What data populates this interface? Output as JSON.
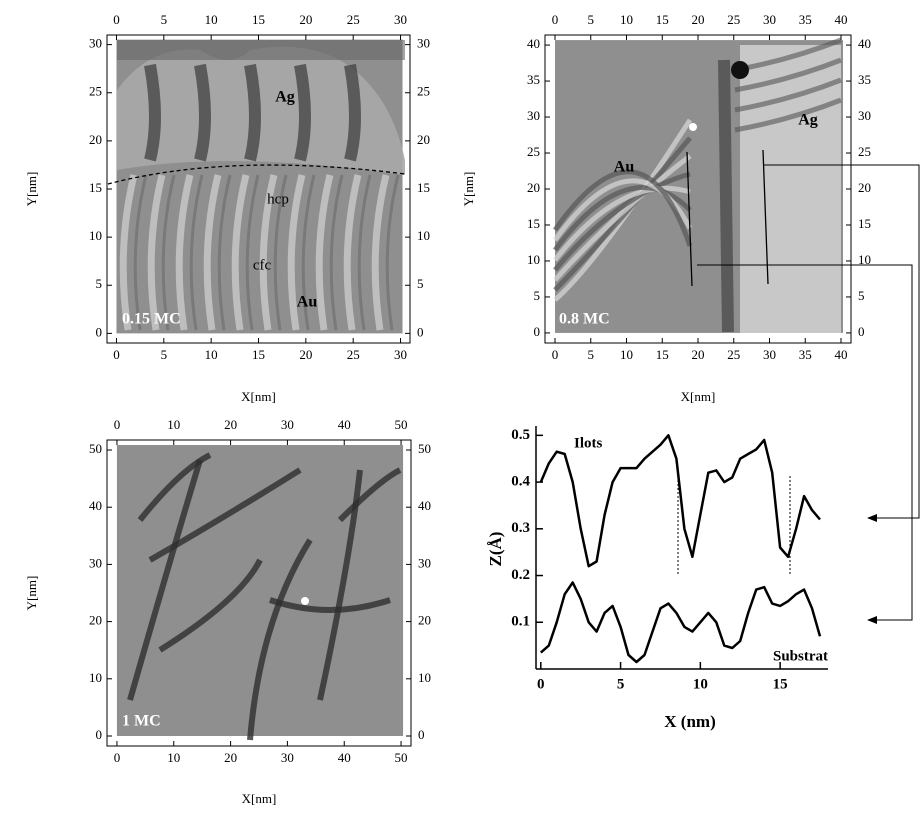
{
  "chart_data": [
    {
      "type": "image",
      "xlabel": "X[nm]",
      "ylabel": "Y[nm]",
      "xlim": [
        -1,
        31
      ],
      "ylim": [
        -1,
        31
      ],
      "xticks": [
        0,
        5,
        10,
        15,
        20,
        25,
        30
      ],
      "yticks": [
        0,
        5,
        10,
        15,
        20,
        25,
        30
      ],
      "annotations": [
        "Ag",
        "hcp",
        "cfc",
        "Au",
        "0.15 MC"
      ]
    },
    {
      "type": "image",
      "xlabel": "X[nm]",
      "ylabel": "Y[nm]",
      "xlim": [
        -1.4,
        41.4
      ],
      "ylim": [
        -1.4,
        41.4
      ],
      "xticks": [
        0,
        5,
        10,
        15,
        20,
        25,
        30,
        35,
        40
      ],
      "yticks": [
        0,
        5,
        10,
        15,
        20,
        25,
        30,
        35,
        40
      ],
      "annotations": [
        "Au",
        "Ag",
        "0.8 MC"
      ]
    },
    {
      "type": "image",
      "xlabel": "X[nm]",
      "ylabel": "Y[nm]",
      "xlim": [
        -1.75,
        51.75
      ],
      "ylim": [
        -1.75,
        51.75
      ],
      "xticks": [
        0,
        10,
        20,
        30,
        40,
        50
      ],
      "yticks": [
        0,
        10,
        20,
        30,
        40,
        50
      ],
      "annotations": [
        "1 MC"
      ]
    },
    {
      "type": "line",
      "xlabel": "X (nm)",
      "ylabel": "Z(Å)",
      "xlim": [
        -0.3,
        18
      ],
      "ylim": [
        0,
        0.52
      ],
      "xticks": [
        0,
        5,
        10,
        15
      ],
      "yticks": [
        0.1,
        0.2,
        0.3,
        0.4,
        0.5
      ],
      "x": [
        0,
        0.5,
        1,
        1.5,
        2,
        2.5,
        3,
        3.5,
        4,
        4.5,
        5,
        5.5,
        6,
        6.5,
        7,
        7.5,
        8,
        8.5,
        9,
        9.5,
        10,
        10.5,
        11,
        11.5,
        12,
        12.5,
        13,
        13.5,
        14,
        14.5,
        15,
        15.5,
        16,
        16.5,
        17,
        17.5
      ],
      "series": [
        {
          "name": "Ilots",
          "color": "#000000",
          "values": [
            0.4,
            0.44,
            0.465,
            0.46,
            0.4,
            0.3,
            0.22,
            0.23,
            0.33,
            0.4,
            0.43,
            0.43,
            0.43,
            0.45,
            0.465,
            0.48,
            0.5,
            0.45,
            0.3,
            0.24,
            0.33,
            0.42,
            0.425,
            0.4,
            0.41,
            0.45,
            0.46,
            0.47,
            0.49,
            0.42,
            0.26,
            0.24,
            0.3,
            0.37,
            0.34,
            0.32
          ]
        },
        {
          "name": "Substrat",
          "color": "#000000",
          "values": [
            0.035,
            0.05,
            0.1,
            0.16,
            0.185,
            0.15,
            0.1,
            0.08,
            0.12,
            0.135,
            0.09,
            0.03,
            0.015,
            0.03,
            0.08,
            0.13,
            0.14,
            0.12,
            0.09,
            0.08,
            0.1,
            0.12,
            0.1,
            0.05,
            0.045,
            0.06,
            0.12,
            0.17,
            0.175,
            0.14,
            0.135,
            0.145,
            0.16,
            0.17,
            0.13,
            0.07
          ]
        }
      ]
    }
  ]
}
